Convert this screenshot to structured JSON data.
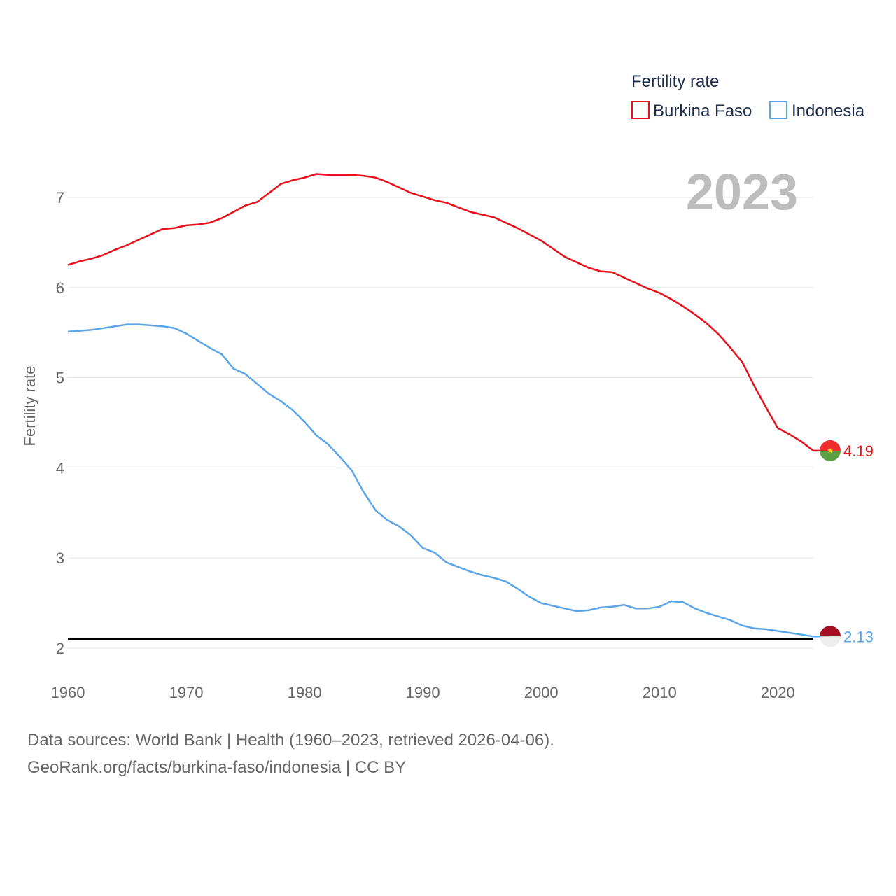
{
  "chart_data": {
    "type": "line",
    "ylabel": "Fertility rate",
    "legend_title": "Fertility rate",
    "current_year_label": "2023",
    "xlim": [
      1960,
      2023
    ],
    "ylim": [
      1.9,
      7.5
    ],
    "x_ticks": [
      1960,
      1970,
      1980,
      1990,
      2000,
      2010,
      2020
    ],
    "y_ticks": [
      2,
      3,
      4,
      5,
      6,
      7
    ],
    "reference_line": 2.1,
    "x": [
      1960,
      1961,
      1962,
      1963,
      1964,
      1965,
      1966,
      1967,
      1968,
      1969,
      1970,
      1971,
      1972,
      1973,
      1974,
      1975,
      1976,
      1977,
      1978,
      1979,
      1980,
      1981,
      1982,
      1983,
      1984,
      1985,
      1986,
      1987,
      1988,
      1989,
      1990,
      1991,
      1992,
      1993,
      1994,
      1995,
      1996,
      1997,
      1998,
      1999,
      2000,
      2001,
      2002,
      2003,
      2004,
      2005,
      2006,
      2007,
      2008,
      2009,
      2010,
      2011,
      2012,
      2013,
      2014,
      2015,
      2016,
      2017,
      2018,
      2019,
      2020,
      2021,
      2022,
      2023
    ],
    "series": [
      {
        "name": "Burkina Faso",
        "color": "#e8101a",
        "end_label": "4.19",
        "values": [
          6.25,
          6.29,
          6.32,
          6.36,
          6.42,
          6.47,
          6.53,
          6.59,
          6.65,
          6.66,
          6.69,
          6.7,
          6.72,
          6.77,
          6.84,
          6.91,
          6.95,
          7.05,
          7.15,
          7.19,
          7.22,
          7.26,
          7.25,
          7.25,
          7.25,
          7.24,
          7.22,
          7.17,
          7.11,
          7.05,
          7.01,
          6.97,
          6.94,
          6.89,
          6.84,
          6.81,
          6.78,
          6.72,
          6.66,
          6.59,
          6.52,
          6.43,
          6.34,
          6.28,
          6.22,
          6.18,
          6.17,
          6.11,
          6.05,
          5.99,
          5.94,
          5.87,
          5.79,
          5.7,
          5.6,
          5.48,
          5.33,
          5.17,
          4.91,
          4.67,
          4.44,
          4.37,
          4.29,
          4.19
        ]
      },
      {
        "name": "Indonesia",
        "color": "#5aa5e8",
        "end_label": "2.13",
        "values": [
          5.51,
          5.52,
          5.53,
          5.55,
          5.57,
          5.59,
          5.59,
          5.58,
          5.57,
          5.55,
          5.49,
          5.41,
          5.33,
          5.26,
          5.1,
          5.04,
          4.93,
          4.82,
          4.74,
          4.64,
          4.51,
          4.36,
          4.26,
          4.12,
          3.97,
          3.73,
          3.53,
          3.42,
          3.35,
          3.25,
          3.11,
          3.06,
          2.95,
          2.9,
          2.85,
          2.81,
          2.78,
          2.74,
          2.66,
          2.57,
          2.5,
          2.47,
          2.44,
          2.41,
          2.42,
          2.45,
          2.46,
          2.48,
          2.44,
          2.44,
          2.46,
          2.52,
          2.51,
          2.44,
          2.39,
          2.35,
          2.31,
          2.25,
          2.22,
          2.21,
          2.19,
          2.17,
          2.15,
          2.13
        ]
      }
    ]
  },
  "source": {
    "line1": "Data sources: World Bank | Health (1960–2023, retrieved 2026-04-06).",
    "line2": "GeoRank.org/facts/burkina-faso/indonesia | CC BY"
  }
}
